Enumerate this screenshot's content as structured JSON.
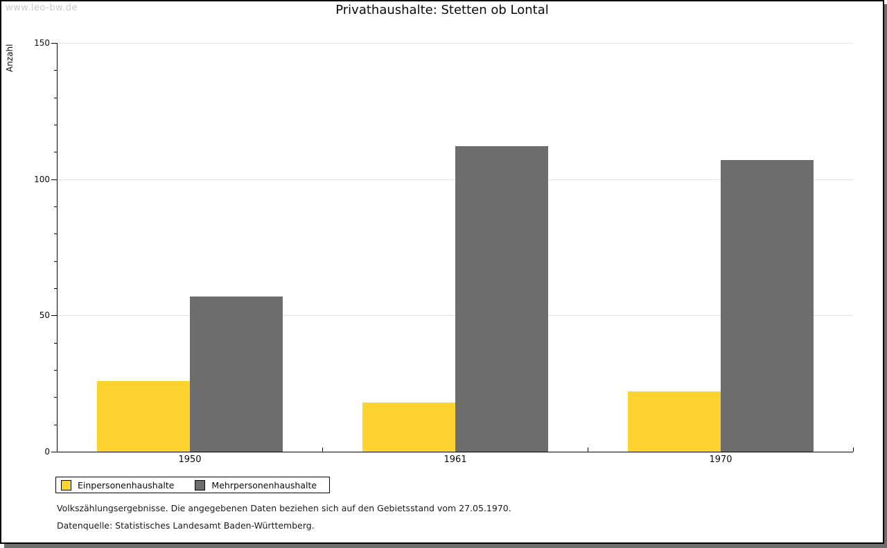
{
  "page": {
    "watermark": "www.leo-bw.de",
    "footnotes": [
      "Volkszählungsergebnisse. Die angegebenen Daten beziehen sich auf den Gebietsstand vom 27.05.1970.",
      "Datenquelle: Statistisches Landesamt Baden-Württemberg."
    ],
    "colors": {
      "frame_border": "#000000",
      "frame_shadow": "#6E6E6E",
      "gridline": "#E2E2E2",
      "axis": "#000000",
      "watermark": "#CBCBCB",
      "text": "#0A0A0A"
    }
  },
  "chart_data": {
    "type": "bar",
    "title": "Privathaushalte: Stetten ob Lontal",
    "categories": [
      "1950",
      "1961",
      "1970"
    ],
    "series": [
      {
        "name": "Einpersonenhaushalte",
        "color": "#FDD330",
        "values": [
          26,
          18,
          22
        ]
      },
      {
        "name": "Mehrpersonenhaushalte",
        "color": "#6D6D6D",
        "values": [
          57,
          112,
          107
        ]
      }
    ],
    "xlabel": "",
    "ylabel": "Anzahl",
    "ylim": [
      0,
      150
    ],
    "yticks_major": [
      0,
      50,
      100,
      150
    ],
    "yticks_minor_step": 10,
    "grid": "horizontal-at-major-ticks",
    "legend_position": "bottom-left",
    "legend_border": true
  }
}
